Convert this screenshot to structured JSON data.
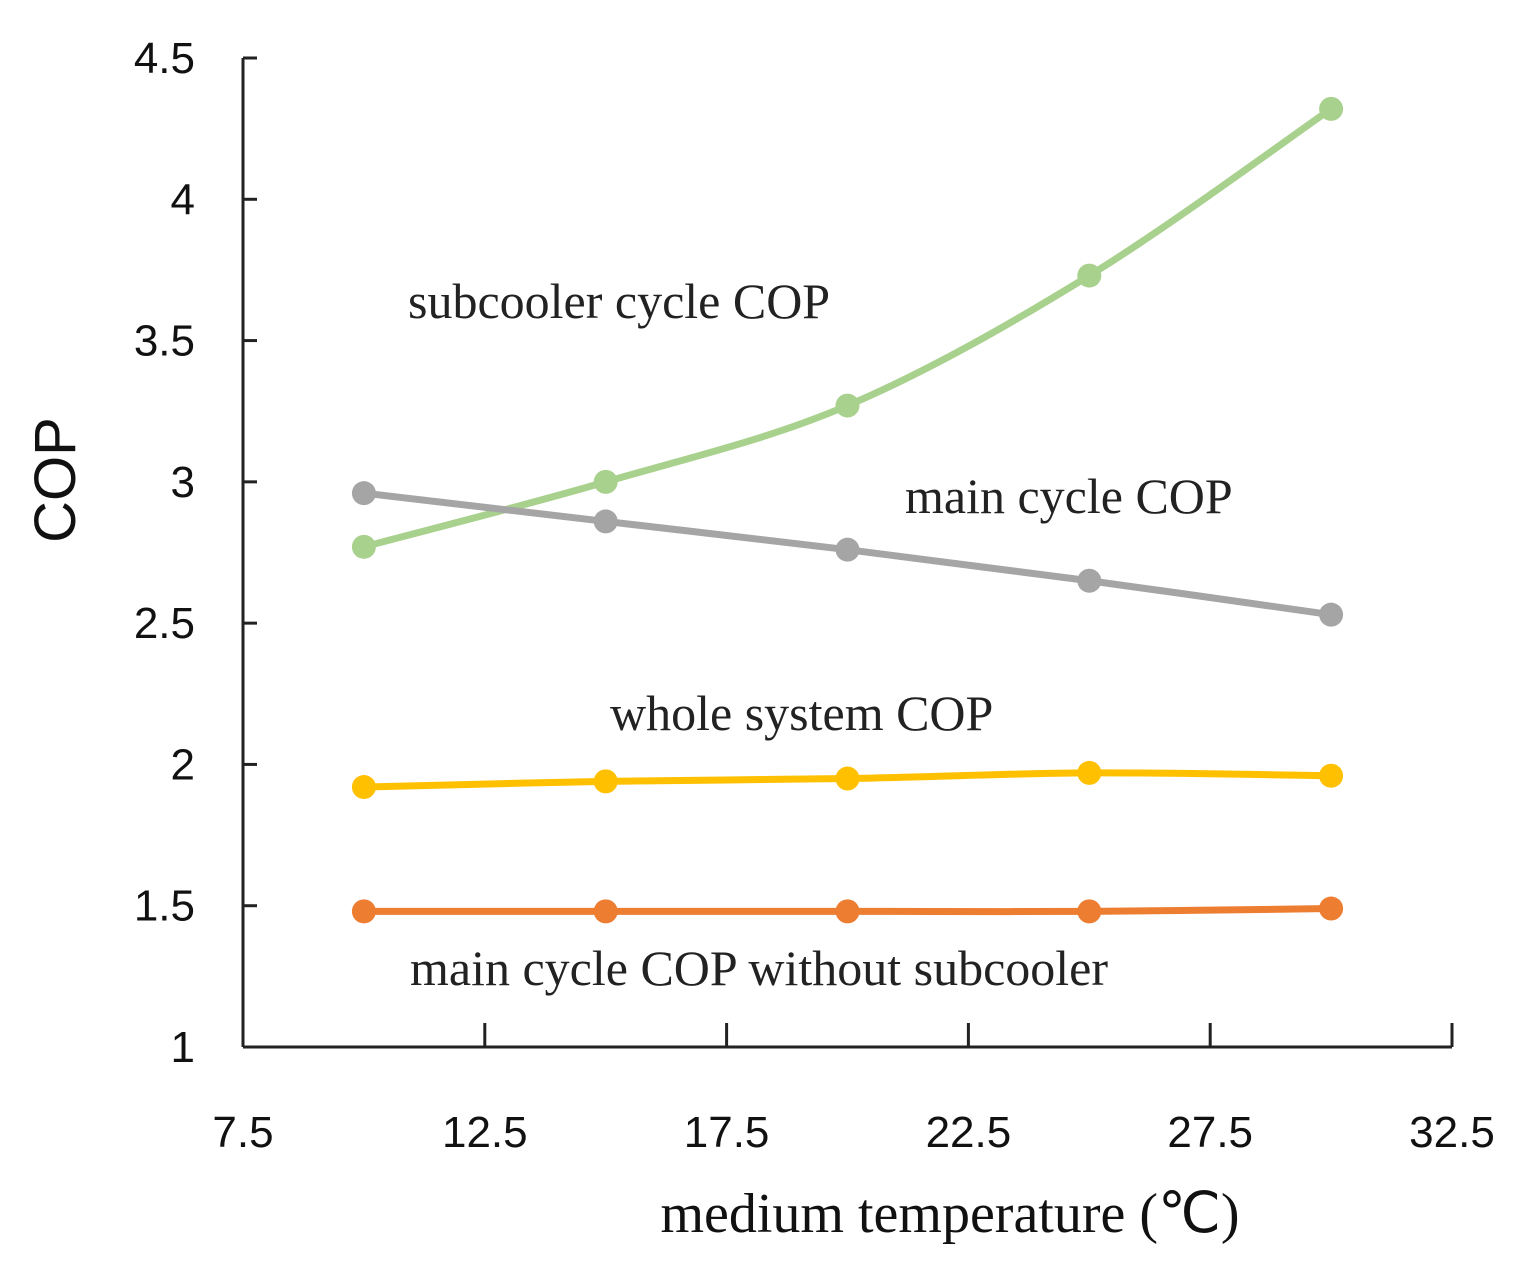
{
  "chart_data": {
    "type": "line",
    "title": "",
    "xlabel": "medium temperature (℃)",
    "ylabel": "COP",
    "xlim": [
      7.5,
      32.5
    ],
    "ylim": [
      1,
      4.5
    ],
    "xticks": [
      "7.5",
      "12.5",
      "17.5",
      "22.5",
      "27.5",
      "32.5"
    ],
    "yticks": [
      "1",
      "1.5",
      "2",
      "2.5",
      "3",
      "3.5",
      "4",
      "4.5"
    ],
    "x": [
      10,
      15,
      20,
      25,
      30
    ],
    "grid": false,
    "series": [
      {
        "name": "subcooler cycle COP",
        "color": "#a9d18e",
        "values": [
          2.77,
          3.0,
          3.27,
          3.73,
          4.32
        ]
      },
      {
        "name": "main cycle COP",
        "color": "#a5a5a5",
        "values": [
          2.96,
          2.86,
          2.76,
          2.65,
          2.53
        ]
      },
      {
        "name": "whole system COP",
        "color": "#ffc000",
        "values": [
          1.92,
          1.94,
          1.95,
          1.97,
          1.96
        ]
      },
      {
        "name": "main cycle COP without subcooler",
        "color": "#ed7d31",
        "values": [
          1.48,
          1.48,
          1.48,
          1.48,
          1.49
        ]
      }
    ]
  }
}
